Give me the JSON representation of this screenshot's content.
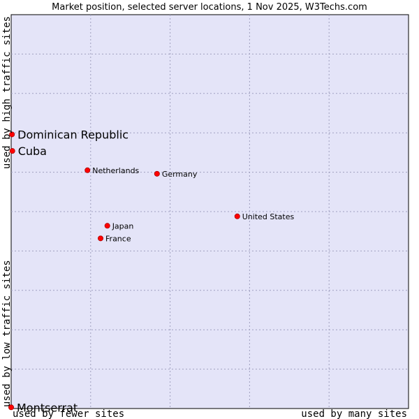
{
  "chart_data": {
    "type": "scatter",
    "title": "Market position, selected server locations, 1 Nov 2025, W3Techs.com",
    "xlabel_low": "used by fewer sites",
    "xlabel_high": "used by many sites",
    "ylabel_low": "used by low traffic sites",
    "ylabel_high": "used by high traffic sites",
    "xlim": [
      0,
      100
    ],
    "ylim": [
      0,
      100
    ],
    "grid": true,
    "points": [
      {
        "name": "Dominican Republic",
        "x": 0.2,
        "y": 69.6,
        "emphasis": true
      },
      {
        "name": "Cuba",
        "x": 0.3,
        "y": 65.4,
        "emphasis": true
      },
      {
        "name": "Netherlands",
        "x": 19.2,
        "y": 60.5,
        "emphasis": false
      },
      {
        "name": "Germany",
        "x": 36.7,
        "y": 59.6,
        "emphasis": false
      },
      {
        "name": "United States",
        "x": 56.9,
        "y": 48.8,
        "emphasis": false
      },
      {
        "name": "Japan",
        "x": 24.2,
        "y": 46.4,
        "emphasis": false
      },
      {
        "name": "France",
        "x": 22.5,
        "y": 43.2,
        "emphasis": false
      },
      {
        "name": "Montserrat",
        "x": 0.0,
        "y": 0.3,
        "emphasis": true
      }
    ]
  },
  "colors": {
    "plot_background": "#e4e4f8",
    "grid": "#9f9fbf",
    "marker": "#ff0000",
    "marker_outline": "#aa0000",
    "frame": "#000000"
  }
}
